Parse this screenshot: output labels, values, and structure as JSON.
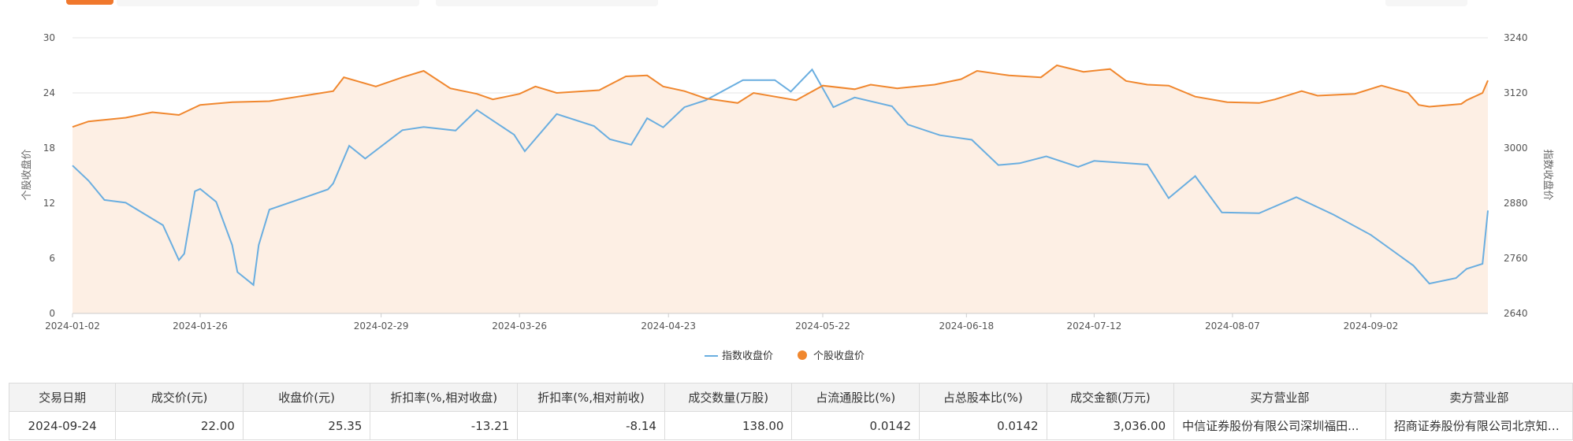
{
  "colors": {
    "index_line": "#6aaee0",
    "stock_line": "#f0872e",
    "area_fill": "#fdefe4",
    "grid": "#e6e6e6",
    "accent": "#f0782d"
  },
  "chart_data": {
    "type": "line",
    "x_tick_labels": [
      "2024-01-02",
      "2024-01-26",
      "2024-02-29",
      "2024-03-26",
      "2024-04-23",
      "2024-05-22",
      "2024-06-18",
      "2024-07-12",
      "2024-08-07",
      "2024-09-02"
    ],
    "y_left": {
      "label": "个股收盘价",
      "range": [
        0,
        30
      ],
      "ticks": [
        "0",
        "6",
        "12",
        "18",
        "24",
        "30"
      ]
    },
    "y_right": {
      "label": "指数收盘价",
      "range": [
        2640,
        3240
      ],
      "ticks": [
        "2640",
        "2760",
        "2880",
        "3000",
        "3120",
        "3240"
      ]
    },
    "grid": true,
    "legend_position": "bottom-center",
    "series": [
      {
        "name": "指数收盘价",
        "axis": "right",
        "key_points": [
          {
            "date": "2024-01-02",
            "value": 2962
          },
          {
            "date": "2024-01-05",
            "value": 2929
          },
          {
            "date": "2024-01-08",
            "value": 2887
          },
          {
            "date": "2024-01-12",
            "value": 2881
          },
          {
            "date": "2024-01-19",
            "value": 2832
          },
          {
            "date": "2024-01-22",
            "value": 2756
          },
          {
            "date": "2024-01-23",
            "value": 2770
          },
          {
            "date": "2024-01-25",
            "value": 2906
          },
          {
            "date": "2024-01-26",
            "value": 2911
          },
          {
            "date": "2024-01-29",
            "value": 2883
          },
          {
            "date": "2024-02-01",
            "value": 2789
          },
          {
            "date": "2024-02-02",
            "value": 2730
          },
          {
            "date": "2024-02-05",
            "value": 2702
          },
          {
            "date": "2024-02-06",
            "value": 2789
          },
          {
            "date": "2024-02-08",
            "value": 2866
          },
          {
            "date": "2024-02-19",
            "value": 2910
          },
          {
            "date": "2024-02-20",
            "value": 2923
          },
          {
            "date": "2024-02-23",
            "value": 3005
          },
          {
            "date": "2024-02-26",
            "value": 2977
          },
          {
            "date": "2024-03-04",
            "value": 3039
          },
          {
            "date": "2024-03-08",
            "value": 3046
          },
          {
            "date": "2024-03-14",
            "value": 3038
          },
          {
            "date": "2024-03-18",
            "value": 3083
          },
          {
            "date": "2024-03-25",
            "value": 3029
          },
          {
            "date": "2024-03-27",
            "value": 2993
          },
          {
            "date": "2024-04-02",
            "value": 3074
          },
          {
            "date": "2024-04-09",
            "value": 3048
          },
          {
            "date": "2024-04-12",
            "value": 3019
          },
          {
            "date": "2024-04-16",
            "value": 3007
          },
          {
            "date": "2024-04-19",
            "value": 3065
          },
          {
            "date": "2024-04-22",
            "value": 3045
          },
          {
            "date": "2024-04-26",
            "value": 3089
          },
          {
            "date": "2024-04-30",
            "value": 3104
          },
          {
            "date": "2024-05-07",
            "value": 3148
          },
          {
            "date": "2024-05-13",
            "value": 3148
          },
          {
            "date": "2024-05-16",
            "value": 3123
          },
          {
            "date": "2024-05-20",
            "value": 3171
          },
          {
            "date": "2024-05-24",
            "value": 3089
          },
          {
            "date": "2024-05-28",
            "value": 3110
          },
          {
            "date": "2024-06-04",
            "value": 3091
          },
          {
            "date": "2024-06-07",
            "value": 3051
          },
          {
            "date": "2024-06-13",
            "value": 3028
          },
          {
            "date": "2024-06-19",
            "value": 3018
          },
          {
            "date": "2024-06-24",
            "value": 2963
          },
          {
            "date": "2024-06-28",
            "value": 2967
          },
          {
            "date": "2024-07-03",
            "value": 2982
          },
          {
            "date": "2024-07-09",
            "value": 2959
          },
          {
            "date": "2024-07-12",
            "value": 2972
          },
          {
            "date": "2024-07-22",
            "value": 2964
          },
          {
            "date": "2024-07-26",
            "value": 2891
          },
          {
            "date": "2024-07-31",
            "value": 2939
          },
          {
            "date": "2024-08-05",
            "value": 2860
          },
          {
            "date": "2024-08-12",
            "value": 2858
          },
          {
            "date": "2024-08-19",
            "value": 2893
          },
          {
            "date": "2024-08-26",
            "value": 2855
          },
          {
            "date": "2024-09-02",
            "value": 2811
          },
          {
            "date": "2024-09-10",
            "value": 2744
          },
          {
            "date": "2024-09-13",
            "value": 2705
          },
          {
            "date": "2024-09-18",
            "value": 2717
          },
          {
            "date": "2024-09-20",
            "value": 2737
          },
          {
            "date": "2024-09-23",
            "value": 2748
          },
          {
            "date": "2024-09-24",
            "value": 2864
          }
        ]
      },
      {
        "name": "个股收盘价",
        "axis": "left",
        "key_points": [
          {
            "date": "2024-01-02",
            "value": 20.3
          },
          {
            "date": "2024-01-05",
            "value": 20.9
          },
          {
            "date": "2024-01-12",
            "value": 21.3
          },
          {
            "date": "2024-01-17",
            "value": 21.9
          },
          {
            "date": "2024-01-22",
            "value": 21.6
          },
          {
            "date": "2024-01-26",
            "value": 22.7
          },
          {
            "date": "2024-02-01",
            "value": 23.0
          },
          {
            "date": "2024-02-08",
            "value": 23.1
          },
          {
            "date": "2024-02-20",
            "value": 24.2
          },
          {
            "date": "2024-02-22",
            "value": 25.7
          },
          {
            "date": "2024-02-28",
            "value": 24.7
          },
          {
            "date": "2024-03-04",
            "value": 25.7
          },
          {
            "date": "2024-03-08",
            "value": 26.4
          },
          {
            "date": "2024-03-13",
            "value": 24.5
          },
          {
            "date": "2024-03-18",
            "value": 23.9
          },
          {
            "date": "2024-03-21",
            "value": 23.3
          },
          {
            "date": "2024-03-26",
            "value": 23.9
          },
          {
            "date": "2024-03-29",
            "value": 24.7
          },
          {
            "date": "2024-04-02",
            "value": 24.0
          },
          {
            "date": "2024-04-10",
            "value": 24.3
          },
          {
            "date": "2024-04-15",
            "value": 25.8
          },
          {
            "date": "2024-04-19",
            "value": 25.9
          },
          {
            "date": "2024-04-22",
            "value": 24.7
          },
          {
            "date": "2024-04-26",
            "value": 24.2
          },
          {
            "date": "2024-04-30",
            "value": 23.4
          },
          {
            "date": "2024-05-06",
            "value": 22.9
          },
          {
            "date": "2024-05-09",
            "value": 24.0
          },
          {
            "date": "2024-05-17",
            "value": 23.2
          },
          {
            "date": "2024-05-22",
            "value": 24.8
          },
          {
            "date": "2024-05-28",
            "value": 24.4
          },
          {
            "date": "2024-05-31",
            "value": 24.9
          },
          {
            "date": "2024-06-05",
            "value": 24.5
          },
          {
            "date": "2024-06-12",
            "value": 24.9
          },
          {
            "date": "2024-06-17",
            "value": 25.5
          },
          {
            "date": "2024-06-20",
            "value": 26.4
          },
          {
            "date": "2024-06-26",
            "value": 25.9
          },
          {
            "date": "2024-07-02",
            "value": 25.7
          },
          {
            "date": "2024-07-05",
            "value": 27.0
          },
          {
            "date": "2024-07-10",
            "value": 26.3
          },
          {
            "date": "2024-07-15",
            "value": 26.6
          },
          {
            "date": "2024-07-18",
            "value": 25.3
          },
          {
            "date": "2024-07-22",
            "value": 24.9
          },
          {
            "date": "2024-07-26",
            "value": 24.8
          },
          {
            "date": "2024-07-31",
            "value": 23.6
          },
          {
            "date": "2024-08-06",
            "value": 23.0
          },
          {
            "date": "2024-08-12",
            "value": 22.9
          },
          {
            "date": "2024-08-15",
            "value": 23.3
          },
          {
            "date": "2024-08-20",
            "value": 24.2
          },
          {
            "date": "2024-08-23",
            "value": 23.7
          },
          {
            "date": "2024-08-30",
            "value": 23.9
          },
          {
            "date": "2024-09-04",
            "value": 24.8
          },
          {
            "date": "2024-09-09",
            "value": 24.0
          },
          {
            "date": "2024-09-11",
            "value": 22.7
          },
          {
            "date": "2024-09-13",
            "value": 22.5
          },
          {
            "date": "2024-09-19",
            "value": 22.8
          },
          {
            "date": "2024-09-20",
            "value": 23.2
          },
          {
            "date": "2024-09-23",
            "value": 24.0
          },
          {
            "date": "2024-09-24",
            "value": 25.35
          }
        ]
      }
    ]
  },
  "table": {
    "headers": [
      "交易日期",
      "成交价(元)",
      "收盘价(元)",
      "折扣率(%,相对收盘)",
      "折扣率(%,相对前收)",
      "成交数量(万股)",
      "占流通股比(%)",
      "占总股本比(%)",
      "成交金额(万元)",
      "买方营业部",
      "卖方营业部"
    ],
    "rows": [
      [
        "2024-09-24",
        "22.00",
        "25.35",
        "-13.21",
        "-8.14",
        "138.00",
        "0.0142",
        "0.0142",
        "3,036.00",
        "中信证券股份有限公司深圳福田...",
        "招商证券股份有限公司北京知春..."
      ]
    ]
  }
}
